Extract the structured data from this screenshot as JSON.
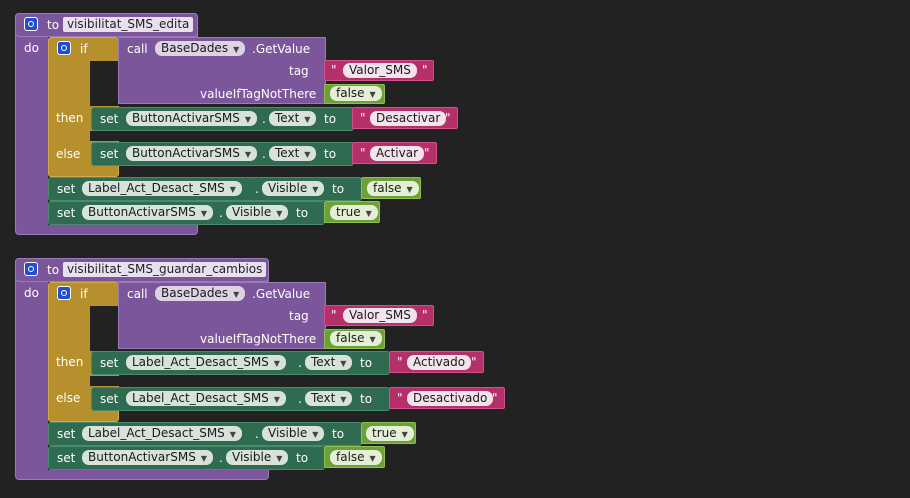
{
  "keywords": {
    "to": "to",
    "do": "do",
    "if": "if",
    "then": "then",
    "else": "else",
    "call": "call",
    "set": "set",
    "dot": ".",
    "quote": "\"",
    "getvalue": ".GetValue",
    "tag": "tag",
    "valueiftag": "valueIfTagNotThere"
  },
  "blocks": [
    {
      "procedure": "visibilitat_SMS_edita",
      "db_component": "BaseDades",
      "tag_value": "Valor_SMS",
      "default_value": "false",
      "then": {
        "component": "ButtonActivarSMS",
        "property": "Text",
        "value": "Desactivar"
      },
      "else": {
        "component": "ButtonActivarSMS",
        "property": "Text",
        "value": "Activar"
      },
      "after": [
        {
          "component": "Label_Act_Desact_SMS",
          "property": "Visible",
          "value": "false"
        },
        {
          "component": "ButtonActivarSMS",
          "property": "Visible",
          "value": "true"
        }
      ]
    },
    {
      "procedure": "visibilitat_SMS_guardar_cambios",
      "db_component": "BaseDades",
      "tag_value": "Valor_SMS",
      "default_value": "false",
      "then": {
        "component": "Label_Act_Desact_SMS",
        "property": "Text",
        "value": "Activado"
      },
      "else": {
        "component": "Label_Act_Desact_SMS",
        "property": "Text",
        "value": "Desactivado"
      },
      "after": [
        {
          "component": "Label_Act_Desact_SMS",
          "property": "Visible",
          "value": "true"
        },
        {
          "component": "ButtonActivarSMS",
          "property": "Visible",
          "value": "false"
        }
      ]
    }
  ],
  "colors": {
    "procedure": "#7b569b",
    "control": "#b7902e",
    "setter": "#2f6b50",
    "text": "#b5306a",
    "logic": "#6ea03a",
    "background": "#222222"
  }
}
